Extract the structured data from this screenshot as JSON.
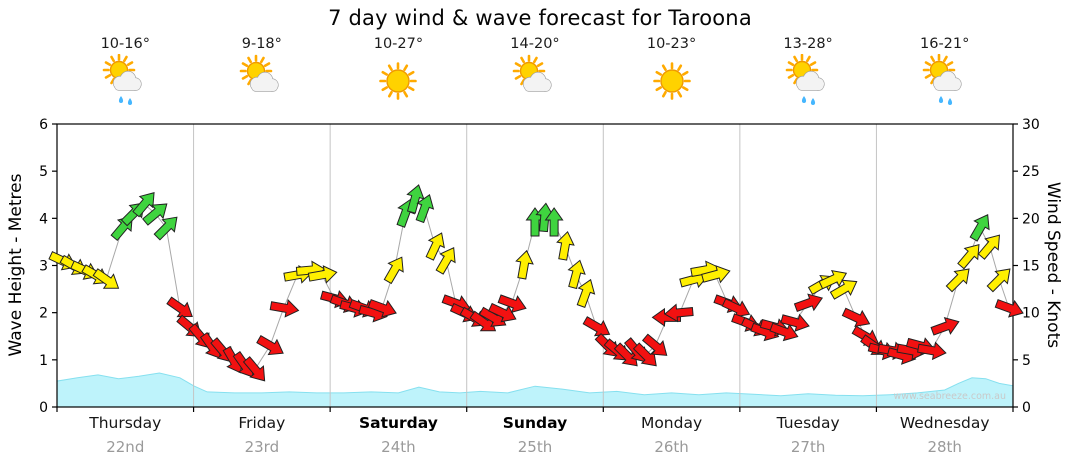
{
  "watermark": "www.seabreeze.com.au",
  "chart_data": {
    "type": "line",
    "title": "7 day wind & wave forecast for Taroona",
    "grid": "vertical-day-separators",
    "legend": "none",
    "y_left": {
      "label": "Wave Height - Metres",
      "min": 0,
      "max": 6,
      "ticks": [
        0,
        1,
        2,
        3,
        4,
        5,
        6
      ]
    },
    "y_right": {
      "label": "Wind Speed - Knots",
      "min": 0,
      "max": 30,
      "ticks": [
        0,
        5,
        10,
        15,
        20,
        25,
        30
      ]
    },
    "days": [
      {
        "name": "Thursday",
        "date": "22nd",
        "temp": "10-16°",
        "icon": "sun-cloud-rain",
        "bold": false
      },
      {
        "name": "Friday",
        "date": "23rd",
        "temp": "9-18°",
        "icon": "sun-cloud",
        "bold": false
      },
      {
        "name": "Saturday",
        "date": "24th",
        "temp": "10-27°",
        "icon": "sun",
        "bold": true
      },
      {
        "name": "Sunday",
        "date": "25th",
        "temp": "14-20°",
        "icon": "sun-cloud",
        "bold": true
      },
      {
        "name": "Monday",
        "date": "26th",
        "temp": "10-23°",
        "icon": "sun",
        "bold": false
      },
      {
        "name": "Tuesday",
        "date": "27th",
        "temp": "13-28°",
        "icon": "sun-cloud-rain",
        "bold": false
      },
      {
        "name": "Wednesday",
        "date": "28th",
        "temp": "16-21°",
        "icon": "sun-cloud-rain",
        "bold": false
      }
    ],
    "colors": {
      "red": "#f21111",
      "yellow": "#ffef00",
      "green": "#3fd43f",
      "wave_fill": "#bef3fb",
      "wave_stroke": "#86e0ef",
      "connector": "#a8a8a8"
    },
    "wind_series": {
      "units": "knots",
      "format": [
        "day_fraction",
        "knots",
        "direction_deg",
        "color"
      ],
      "points": [
        [
          0.04,
          15.5,
          25,
          "yellow"
        ],
        [
          0.12,
          15,
          30,
          "yellow"
        ],
        [
          0.2,
          14.5,
          25,
          "yellow"
        ],
        [
          0.28,
          14,
          30,
          "yellow"
        ],
        [
          0.36,
          13.5,
          35,
          "yellow"
        ],
        [
          0.48,
          19,
          -50,
          "green"
        ],
        [
          0.56,
          20.5,
          -45,
          "green"
        ],
        [
          0.64,
          21.5,
          -50,
          "green"
        ],
        [
          0.72,
          20.5,
          -40,
          "green"
        ],
        [
          0.8,
          19,
          -45,
          "green"
        ],
        [
          0.9,
          10.5,
          35,
          "red"
        ],
        [
          0.97,
          8.5,
          40,
          "red"
        ],
        [
          1.05,
          7.5,
          50,
          "red"
        ],
        [
          1.13,
          6.5,
          55,
          "red"
        ],
        [
          1.21,
          6,
          50,
          "red"
        ],
        [
          1.29,
          5,
          60,
          "red"
        ],
        [
          1.37,
          4.5,
          55,
          "red"
        ],
        [
          1.45,
          4,
          50,
          "red"
        ],
        [
          1.56,
          6.5,
          30,
          "red"
        ],
        [
          1.66,
          10.5,
          10,
          "red"
        ],
        [
          1.76,
          14,
          -10,
          "yellow"
        ],
        [
          1.85,
          14.5,
          -5,
          "yellow"
        ],
        [
          1.94,
          14,
          -10,
          "yellow"
        ],
        [
          2.03,
          11.5,
          15,
          "red"
        ],
        [
          2.1,
          11,
          20,
          "red"
        ],
        [
          2.17,
          10.5,
          15,
          "red"
        ],
        [
          2.24,
          10.5,
          20,
          "red"
        ],
        [
          2.31,
          10,
          15,
          "red"
        ],
        [
          2.38,
          10.5,
          20,
          "red"
        ],
        [
          2.47,
          14.5,
          -60,
          "yellow"
        ],
        [
          2.55,
          20.5,
          -70,
          "green"
        ],
        [
          2.62,
          22,
          -75,
          "green"
        ],
        [
          2.69,
          21,
          -70,
          "green"
        ],
        [
          2.77,
          17,
          -65,
          "yellow"
        ],
        [
          2.85,
          15.5,
          -60,
          "yellow"
        ],
        [
          2.92,
          11,
          20,
          "red"
        ],
        [
          2.98,
          10,
          25,
          "red"
        ],
        [
          3.05,
          9.5,
          30,
          "red"
        ],
        [
          3.12,
          9,
          35,
          "red"
        ],
        [
          3.19,
          9.5,
          30,
          "red"
        ],
        [
          3.26,
          10,
          25,
          "red"
        ],
        [
          3.33,
          11,
          20,
          "red"
        ],
        [
          3.42,
          15,
          -80,
          "yellow"
        ],
        [
          3.5,
          19.5,
          -90,
          "green"
        ],
        [
          3.57,
          20,
          -85,
          "green"
        ],
        [
          3.64,
          19.5,
          -90,
          "green"
        ],
        [
          3.72,
          17,
          -80,
          "yellow"
        ],
        [
          3.8,
          14,
          -75,
          "yellow"
        ],
        [
          3.87,
          12,
          -70,
          "yellow"
        ],
        [
          3.95,
          8.5,
          30,
          "red"
        ],
        [
          4.03,
          6.5,
          45,
          "red"
        ],
        [
          4.1,
          6,
          40,
          "red"
        ],
        [
          4.17,
          5.5,
          45,
          "red"
        ],
        [
          4.24,
          6,
          50,
          "red"
        ],
        [
          4.31,
          5.5,
          45,
          "red"
        ],
        [
          4.38,
          6.5,
          40,
          "red"
        ],
        [
          4.47,
          9.5,
          180,
          "red"
        ],
        [
          4.56,
          10,
          175,
          "red"
        ],
        [
          4.66,
          13.5,
          -15,
          "yellow"
        ],
        [
          4.74,
          14.5,
          -10,
          "yellow"
        ],
        [
          4.82,
          14,
          -15,
          "yellow"
        ],
        [
          4.91,
          11,
          20,
          "red"
        ],
        [
          4.97,
          10.5,
          25,
          "red"
        ],
        [
          5.04,
          9,
          20,
          "red"
        ],
        [
          5.11,
          8.5,
          25,
          "red"
        ],
        [
          5.18,
          8,
          20,
          "red"
        ],
        [
          5.25,
          8.5,
          15,
          "red"
        ],
        [
          5.32,
          8,
          20,
          "red"
        ],
        [
          5.4,
          9,
          15,
          "red"
        ],
        [
          5.5,
          11,
          -20,
          "red"
        ],
        [
          5.6,
          13,
          -30,
          "yellow"
        ],
        [
          5.68,
          13.5,
          -25,
          "yellow"
        ],
        [
          5.76,
          12.5,
          -30,
          "yellow"
        ],
        [
          5.85,
          9.5,
          25,
          "red"
        ],
        [
          5.92,
          7.5,
          30,
          "red"
        ],
        [
          5.98,
          6.5,
          35,
          "red"
        ],
        [
          6.04,
          6,
          15,
          "red"
        ],
        [
          6.11,
          6,
          10,
          "red"
        ],
        [
          6.18,
          5.5,
          15,
          "red"
        ],
        [
          6.25,
          6,
          10,
          "red"
        ],
        [
          6.32,
          6.5,
          15,
          "red"
        ],
        [
          6.4,
          6,
          10,
          "red"
        ],
        [
          6.5,
          8.5,
          -20,
          "red"
        ],
        [
          6.6,
          13.5,
          -45,
          "yellow"
        ],
        [
          6.68,
          16,
          -50,
          "yellow"
        ],
        [
          6.76,
          19,
          -60,
          "green"
        ],
        [
          6.83,
          17,
          -50,
          "yellow"
        ],
        [
          6.9,
          13.5,
          -45,
          "yellow"
        ],
        [
          6.97,
          10.5,
          20,
          "red"
        ]
      ]
    },
    "wave_series": {
      "units": "metres",
      "format": [
        "day_fraction",
        "metres"
      ],
      "points": [
        [
          0,
          0.55
        ],
        [
          0.15,
          0.62
        ],
        [
          0.3,
          0.68
        ],
        [
          0.45,
          0.6
        ],
        [
          0.6,
          0.65
        ],
        [
          0.75,
          0.72
        ],
        [
          0.9,
          0.62
        ],
        [
          1.0,
          0.45
        ],
        [
          1.1,
          0.32
        ],
        [
          1.3,
          0.3
        ],
        [
          1.5,
          0.3
        ],
        [
          1.7,
          0.32
        ],
        [
          1.9,
          0.3
        ],
        [
          2.1,
          0.3
        ],
        [
          2.3,
          0.32
        ],
        [
          2.5,
          0.3
        ],
        [
          2.65,
          0.42
        ],
        [
          2.8,
          0.32
        ],
        [
          2.95,
          0.3
        ],
        [
          3.1,
          0.33
        ],
        [
          3.3,
          0.3
        ],
        [
          3.5,
          0.44
        ],
        [
          3.7,
          0.38
        ],
        [
          3.9,
          0.3
        ],
        [
          4.1,
          0.33
        ],
        [
          4.3,
          0.26
        ],
        [
          4.5,
          0.3
        ],
        [
          4.7,
          0.26
        ],
        [
          4.9,
          0.3
        ],
        [
          5.1,
          0.27
        ],
        [
          5.3,
          0.24
        ],
        [
          5.5,
          0.28
        ],
        [
          5.7,
          0.25
        ],
        [
          5.9,
          0.24
        ],
        [
          6.1,
          0.26
        ],
        [
          6.3,
          0.3
        ],
        [
          6.5,
          0.36
        ],
        [
          6.6,
          0.5
        ],
        [
          6.7,
          0.62
        ],
        [
          6.8,
          0.6
        ],
        [
          6.9,
          0.5
        ],
        [
          7,
          0.45
        ]
      ]
    }
  }
}
